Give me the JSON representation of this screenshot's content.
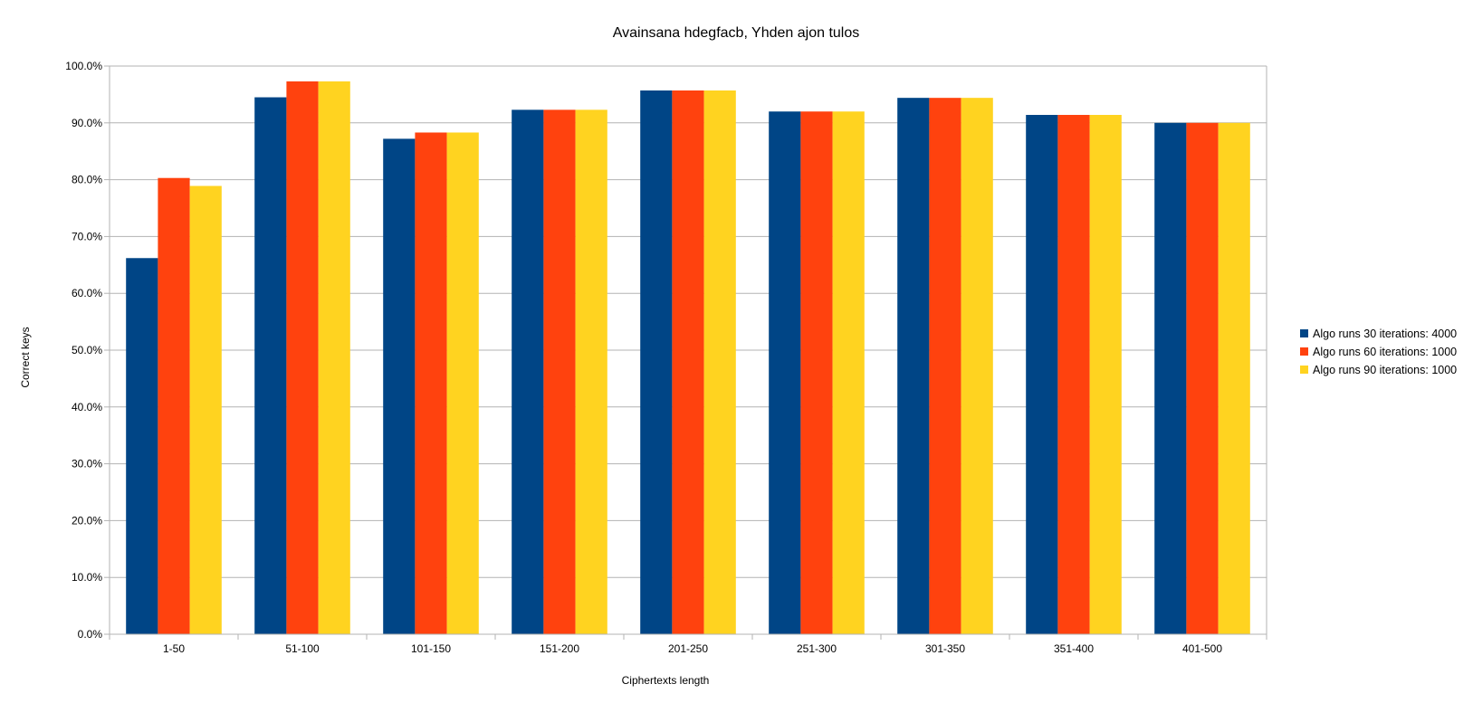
{
  "chart_data": {
    "type": "bar",
    "title": "Avainsana hdegfacb, Yhden ajon tulos",
    "xlabel": "Ciphertexts length",
    "ylabel": "Correct keys",
    "ylim": [
      0,
      100
    ],
    "y_ticks": [
      "0.0%",
      "10.0%",
      "20.0%",
      "30.0%",
      "40.0%",
      "50.0%",
      "60.0%",
      "70.0%",
      "80.0%",
      "90.0%",
      "100.0%"
    ],
    "categories": [
      "1-50",
      "51-100",
      "101-150",
      "151-200",
      "201-250",
      "251-300",
      "301-350",
      "351-400",
      "401-500"
    ],
    "series": [
      {
        "name": "Algo runs 30 iterations: 4000",
        "color": "#004586",
        "values": [
          66.2,
          94.5,
          87.2,
          92.3,
          95.7,
          92.0,
          94.4,
          91.4,
          90.0
        ]
      },
      {
        "name": "Algo runs 60 iterations: 1000",
        "color": "#ff420e",
        "values": [
          80.3,
          97.3,
          88.3,
          92.3,
          95.7,
          92.0,
          94.4,
          91.4,
          90.0
        ]
      },
      {
        "name": "Algo runs 90 iterations: 1000",
        "color": "#ffd320",
        "values": [
          78.9,
          97.3,
          88.3,
          92.3,
          95.7,
          92.0,
          94.4,
          91.4,
          90.0
        ]
      }
    ],
    "grid": true,
    "legend_position": "right"
  }
}
